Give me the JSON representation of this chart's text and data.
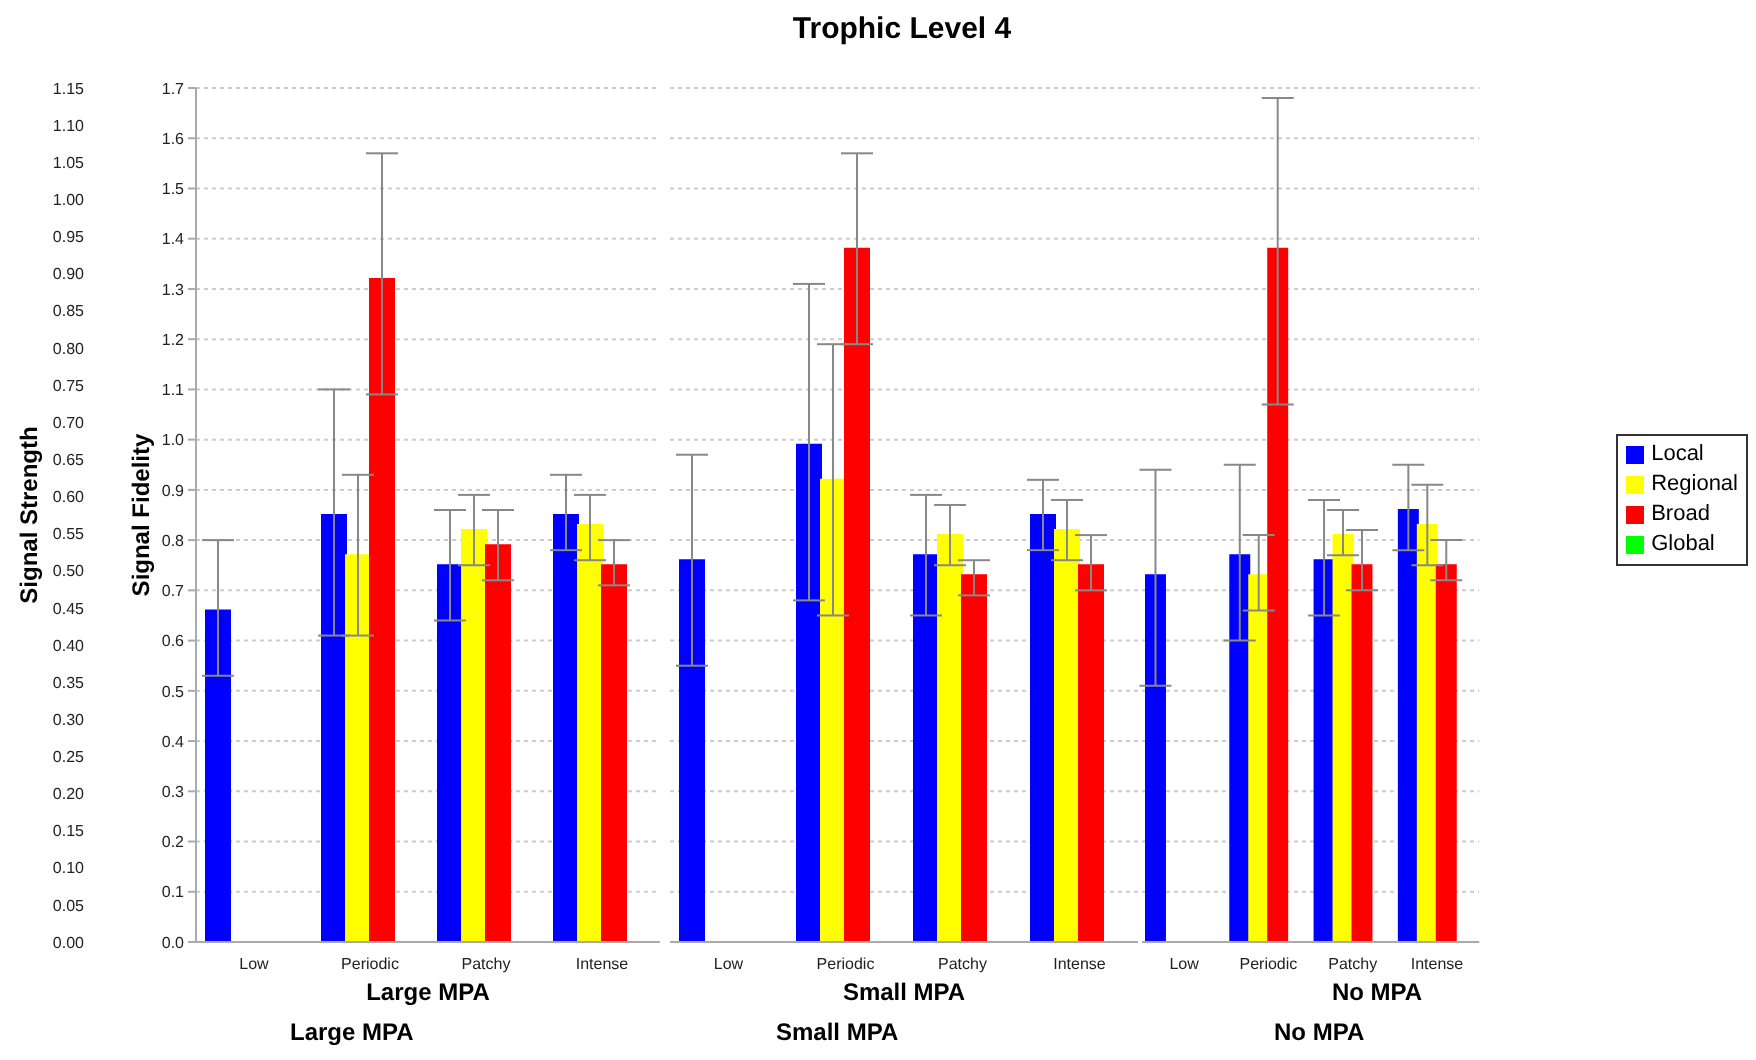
{
  "chart_data": [
    {
      "type": "bar",
      "xlabel": "Large MPA",
      "ylabel": "Signal Fidelity",
      "y2label": "Signal Strength",
      "annotations": [
        "Large MPA"
      ],
      "categories": [
        "Low",
        "Periodic",
        "Patchy",
        "Intense"
      ],
      "series": [
        {
          "color": "#0000ff",
          "values": [
            0.66,
            0.85,
            0.75,
            0.85
          ],
          "errors": [
            [
              0.53,
              0.8
            ],
            [
              0.61,
              1.1
            ],
            [
              0.64,
              0.86
            ],
            [
              0.78,
              0.93
            ]
          ]
        },
        {
          "color": "#ffff00",
          "values": [
            null,
            0.77,
            0.82,
            0.83
          ],
          "errors": [
            null,
            [
              0.61,
              0.93
            ],
            [
              0.75,
              0.89
            ],
            [
              0.76,
              0.89
            ]
          ]
        },
        {
          "color": "#ff0000",
          "values": [
            null,
            1.32,
            0.79,
            0.75
          ],
          "errors": [
            null,
            [
              1.09,
              1.57
            ],
            [
              0.72,
              0.86
            ],
            [
              0.71,
              0.8
            ]
          ]
        },
        {
          "color": "#00ff00",
          "values": [
            null,
            null,
            null,
            null
          ]
        }
      ],
      "ylim": [
        0,
        1.7
      ],
      "yticks": [
        {
          "value": 0,
          "label": "0.0"
        },
        {
          "value": 0.1,
          "label": "0.1"
        },
        {
          "value": 0.2,
          "label": "0.2"
        },
        {
          "value": 0.3,
          "label": "0.3"
        },
        {
          "value": 0.4,
          "label": "0.4"
        },
        {
          "value": 0.5,
          "label": "0.5"
        },
        {
          "value": 0.6,
          "label": "0.6"
        },
        {
          "value": 0.7,
          "label": "0.7"
        },
        {
          "value": 0.8,
          "label": "0.8"
        },
        {
          "value": 0.9,
          "label": "0.9"
        },
        {
          "value": 1,
          "label": "1.0"
        },
        {
          "value": 1.1,
          "label": "1.1"
        },
        {
          "value": 1.2,
          "label": "1.2"
        },
        {
          "value": 1.3,
          "label": "1.3"
        },
        {
          "value": 1.4,
          "label": "1.4"
        },
        {
          "value": 1.5,
          "label": "1.5"
        },
        {
          "value": 1.6,
          "label": "1.6"
        },
        {
          "value": 1.7,
          "label": "1.7"
        }
      ],
      "y2lim": [
        0,
        1.15
      ],
      "y2ticks": [
        {
          "value": 0,
          "label": "0.00"
        },
        {
          "value": 0.05,
          "label": "0.05"
        },
        {
          "value": 0.1,
          "label": "0.10"
        },
        {
          "value": 0.15,
          "label": "0.15"
        },
        {
          "value": 0.2,
          "label": "0.20"
        },
        {
          "value": 0.25,
          "label": "0.25"
        },
        {
          "value": 0.3,
          "label": "0.30"
        },
        {
          "value": 0.35,
          "label": "0.35"
        },
        {
          "value": 0.4,
          "label": "0.40"
        },
        {
          "value": 0.45,
          "label": "0.45"
        },
        {
          "value": 0.5,
          "label": "0.50"
        },
        {
          "value": 0.55,
          "label": "0.55"
        },
        {
          "value": 0.6,
          "label": "0.60"
        },
        {
          "value": 0.65,
          "label": "0.65"
        },
        {
          "value": 0.7,
          "label": "0.70"
        },
        {
          "value": 0.75,
          "label": "0.75"
        },
        {
          "value": 0.8,
          "label": "0.80"
        },
        {
          "value": 0.85,
          "label": "0.85"
        },
        {
          "value": 0.9,
          "label": "0.90"
        },
        {
          "value": 0.95,
          "label": "0.95"
        },
        {
          "value": 1,
          "label": "1.00"
        },
        {
          "value": 1.05,
          "label": "1.05"
        },
        {
          "value": 1.1,
          "label": "1.10"
        },
        {
          "value": 1.15,
          "label": "1.15"
        }
      ],
      "grid": "y",
      "legend": false
    },
    {
      "type": "bar",
      "title": "Trophic Level 4",
      "xlabel": "Small MPA",
      "annotations": [
        "Small MPA"
      ],
      "categories": [
        "Low",
        "Periodic",
        "Patchy",
        "Intense"
      ],
      "series": [
        {
          "color": "#0000ff",
          "values": [
            0.76,
            0.99,
            0.77,
            0.85
          ],
          "errors": [
            [
              0.55,
              0.97
            ],
            [
              0.68,
              1.31
            ],
            [
              0.65,
              0.89
            ],
            [
              0.78,
              0.92
            ]
          ]
        },
        {
          "color": "#ffff00",
          "values": [
            null,
            0.92,
            0.81,
            0.82
          ],
          "errors": [
            null,
            [
              0.65,
              1.19
            ],
            [
              0.75,
              0.87
            ],
            [
              0.76,
              0.88
            ]
          ]
        },
        {
          "color": "#ff0000",
          "values": [
            null,
            1.38,
            0.73,
            0.75
          ],
          "errors": [
            null,
            [
              1.19,
              1.57
            ],
            [
              0.69,
              0.76
            ],
            [
              0.7,
              0.81
            ]
          ]
        },
        {
          "color": "#00ff00",
          "values": [
            null,
            null,
            null,
            null
          ]
        }
      ],
      "ylim": [
        0,
        1.7
      ],
      "yticks": [
        0,
        0.1,
        0.2,
        0.3,
        0.4,
        0.5,
        0.6,
        0.7,
        0.8,
        0.9,
        1,
        1.1,
        1.2,
        1.3,
        1.4,
        1.5,
        1.6,
        1.7
      ],
      "tick_labels": "x",
      "grid": "y",
      "legend": false
    },
    {
      "type": "bar",
      "xlabel": "No MPA",
      "annotations": [
        "No MPA"
      ],
      "categories": [
        "Low",
        "Periodic",
        "Patchy",
        "Intense"
      ],
      "series": [
        {
          "name": "Local",
          "color": "#0000ff",
          "values": [
            0.73,
            0.77,
            0.76,
            0.86
          ],
          "errors": [
            [
              0.51,
              0.94
            ],
            [
              0.6,
              0.95
            ],
            [
              0.65,
              0.88
            ],
            [
              0.78,
              0.95
            ]
          ]
        },
        {
          "name": "Regional",
          "color": "#ffff00",
          "values": [
            null,
            0.73,
            0.81,
            0.83
          ],
          "errors": [
            null,
            [
              0.66,
              0.81
            ],
            [
              0.77,
              0.86
            ],
            [
              0.75,
              0.91
            ]
          ]
        },
        {
          "name": "Broad",
          "color": "#ff0000",
          "values": [
            null,
            1.38,
            0.75,
            0.75
          ],
          "errors": [
            null,
            [
              1.07,
              1.68
            ],
            [
              0.7,
              0.82
            ],
            [
              0.72,
              0.8
            ]
          ]
        },
        {
          "name": "Global",
          "color": "#00ff00",
          "values": [
            null,
            null,
            null,
            null
          ]
        }
      ],
      "ylim": [
        0,
        1.7
      ],
      "yticks": [
        0,
        0.1,
        0.2,
        0.3,
        0.4,
        0.5,
        0.6,
        0.7,
        0.8,
        0.9,
        1,
        1.1,
        1.2,
        1.3,
        1.4,
        1.5,
        1.6,
        1.7
      ],
      "tick_labels": "x",
      "grid": "y",
      "legend": "right"
    }
  ]
}
